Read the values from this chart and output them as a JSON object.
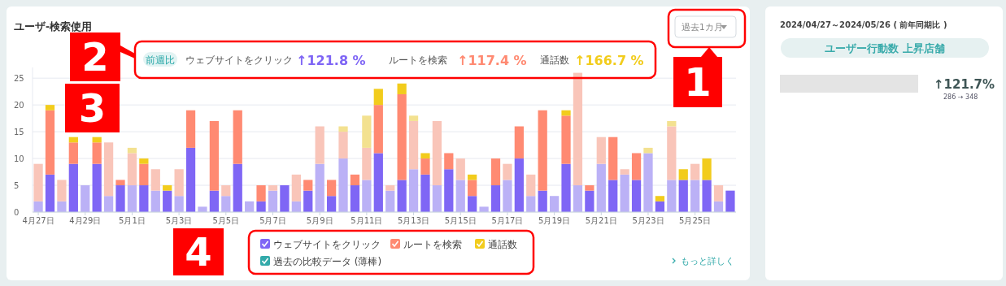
{
  "chart_data": [
    {
      "type": "bar",
      "title": "ユーザ-検索使用",
      "stacked": true,
      "grid": "y",
      "legend": "bottom",
      "ylim": [
        0,
        27
      ],
      "yticks": [
        0,
        5,
        10,
        15,
        20,
        25
      ],
      "categories": [
        "4月27日",
        null,
        null,
        null,
        "4月29日",
        null,
        null,
        null,
        "5月1日",
        null,
        null,
        null,
        "5月3日",
        null,
        null,
        null,
        "5月5日",
        null,
        null,
        null,
        "5月7日",
        null,
        null,
        null,
        "5月9日",
        null,
        null,
        null,
        "5月11日",
        null,
        null,
        null,
        "5月13日",
        null,
        null,
        null,
        "5月15日",
        null,
        null,
        null,
        "5月17日",
        null,
        null,
        null,
        "5月19日",
        null,
        null,
        null,
        "5月21日",
        null,
        null,
        null,
        "5月23日",
        null,
        null,
        null,
        "5月25日",
        null,
        null,
        null
      ],
      "series": [
        {
          "name": "ウェブサイトをクリック",
          "color": "#7f66f5",
          "values": [
            null,
            7,
            null,
            9,
            null,
            9,
            null,
            5,
            null,
            5,
            null,
            4,
            null,
            12,
            null,
            4,
            null,
            9,
            null,
            2,
            null,
            5,
            null,
            4,
            null,
            3,
            null,
            5,
            null,
            11,
            null,
            6,
            null,
            7,
            null,
            8,
            null,
            3,
            null,
            5,
            null,
            10,
            null,
            4,
            null,
            9,
            null,
            4,
            null,
            6,
            null,
            6,
            null,
            2,
            null,
            6,
            null,
            6,
            null,
            4
          ]
        },
        {
          "name": "ルートを検索",
          "color": "#ff8a72",
          "values": [
            null,
            12,
            null,
            4,
            null,
            4,
            null,
            1,
            null,
            4,
            null,
            null,
            null,
            7,
            null,
            13,
            null,
            10,
            null,
            3,
            null,
            null,
            null,
            2,
            null,
            3,
            null,
            2,
            null,
            9,
            null,
            16,
            null,
            3,
            null,
            3,
            null,
            3,
            null,
            5,
            null,
            6,
            null,
            15,
            null,
            9,
            null,
            1,
            null,
            8,
            null,
            5,
            null,
            null,
            null,
            null,
            null,
            null,
            null,
            null
          ]
        },
        {
          "name": "通話数",
          "color": "#f2cc1c",
          "values": [
            null,
            1,
            null,
            1,
            null,
            1,
            null,
            null,
            null,
            1,
            null,
            1,
            null,
            null,
            null,
            null,
            null,
            null,
            null,
            null,
            null,
            null,
            null,
            null,
            null,
            null,
            null,
            null,
            null,
            3,
            null,
            2,
            null,
            1,
            null,
            null,
            null,
            1,
            null,
            null,
            null,
            null,
            null,
            null,
            null,
            1,
            null,
            null,
            null,
            null,
            null,
            null,
            null,
            1,
            null,
            2,
            null,
            4,
            null,
            null
          ]
        },
        {
          "color": "#bbb1f6",
          "values": [
            2,
            null,
            2,
            null,
            5,
            null,
            3,
            null,
            5,
            null,
            4,
            null,
            3,
            null,
            1,
            null,
            3,
            null,
            2,
            null,
            4,
            null,
            2,
            null,
            9,
            null,
            10,
            null,
            6,
            null,
            4,
            null,
            8,
            null,
            5,
            null,
            6,
            null,
            1,
            null,
            6,
            null,
            3,
            null,
            3,
            null,
            5,
            null,
            9,
            null,
            7,
            null,
            11,
            null,
            6,
            null,
            6,
            null,
            2,
            null
          ]
        },
        {
          "color": "#f9c5b9",
          "values": [
            7,
            null,
            4,
            null,
            null,
            null,
            10,
            null,
            6,
            null,
            4,
            null,
            5,
            null,
            null,
            null,
            2,
            null,
            null,
            null,
            1,
            null,
            5,
            null,
            7,
            null,
            5,
            null,
            6,
            null,
            1,
            null,
            9,
            null,
            12,
            null,
            4,
            null,
            null,
            null,
            3,
            null,
            4,
            null,
            null,
            null,
            21,
            null,
            5,
            null,
            1,
            null,
            null,
            null,
            10,
            null,
            3,
            null,
            3,
            null
          ]
        },
        {
          "color": "#f3e190",
          "values": [
            null,
            null,
            null,
            null,
            null,
            null,
            null,
            null,
            1,
            null,
            null,
            null,
            null,
            null,
            null,
            null,
            null,
            null,
            null,
            null,
            null,
            null,
            null,
            null,
            null,
            null,
            1,
            null,
            6,
            null,
            null,
            null,
            1,
            null,
            null,
            null,
            null,
            null,
            null,
            null,
            null,
            null,
            null,
            null,
            null,
            null,
            null,
            null,
            null,
            null,
            null,
            null,
            1,
            null,
            1,
            null,
            null,
            null,
            null,
            null
          ]
        }
      ],
      "annotations": [
        "過去1カ月",
        "前週比",
        "ウェブサイトをクリック",
        "↑121.8 %",
        "ルートを検索",
        "↑117.4 %",
        "通話数",
        "↑166.7 %",
        "過去の比較データ (薄棒)",
        "もっと詳しく",
        "1",
        "2",
        "3",
        "4",
        "5"
      ]
    },
    {
      "type": "other",
      "annotations": [
        "2024/04/27～2024/05/26 ( 前年同期比 )",
        "ユーザー行動数 上昇店舗",
        "↑121.7%",
        "286 → 348"
      ]
    }
  ]
}
